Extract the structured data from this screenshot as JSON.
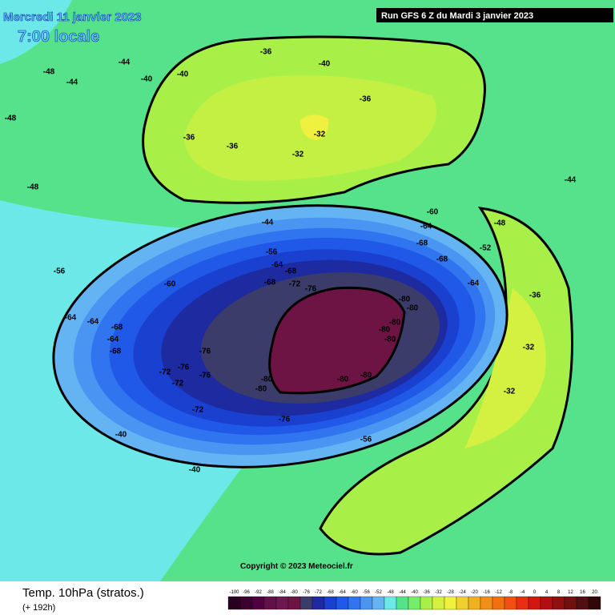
{
  "header": {
    "title": "Mercredi 11 janvier 2023",
    "subtitle": "7:00 locale",
    "run": "Run GFS 6 Z du Mardi 3 janvier 2023"
  },
  "footer": {
    "parameter": "Temp. 10hPa (stratos.)",
    "lead_time": "(+ 192h)",
    "copyright": "Copyright © 2023 Meteociel.fr"
  },
  "colorbar": {
    "labels": [
      -100,
      -96,
      -92,
      -88,
      -84,
      -80,
      -76,
      -72,
      -68,
      -64,
      -60,
      -56,
      -52,
      -48,
      -44,
      -40,
      -36,
      -32,
      -28,
      -24,
      -20,
      -16,
      -12,
      -8,
      -4,
      0,
      4,
      8,
      12,
      16,
      20
    ],
    "colors": [
      "#2a0020",
      "#3c0030",
      "#500040",
      "#621048",
      "#6c1850",
      "#6e1444",
      "#3c3c6a",
      "#1e2aa0",
      "#1a40d0",
      "#2058e8",
      "#3074f0",
      "#4a94f2",
      "#64b4f4",
      "#6ce8e8",
      "#56e28a",
      "#74ee66",
      "#a8f048",
      "#d4f040",
      "#f0f040",
      "#f0d030",
      "#f0b020",
      "#f09018",
      "#f07010",
      "#f05010",
      "#e83010",
      "#d01810",
      "#b01010",
      "#901010",
      "#701010",
      "#501010",
      "#300808"
    ]
  },
  "map": {
    "contour_labels": [
      "-80",
      "-80",
      "-80",
      "-80",
      "-80",
      "-80",
      "-80",
      "-80",
      "-80",
      "-76",
      "-76",
      "-76",
      "-76",
      "-76",
      "-72",
      "-72",
      "-72",
      "-72",
      "-68",
      "-68",
      "-68",
      "-68",
      "-68",
      "-68",
      "-64",
      "-64",
      "-64",
      "-64",
      "-64",
      "-64",
      "-60",
      "-60",
      "-56",
      "-56",
      "-56",
      "-52",
      "-48",
      "-48",
      "-48",
      "-48",
      "-44",
      "-44",
      "-44",
      "-44",
      "-40",
      "-40",
      "-40",
      "-40",
      "-40",
      "-36",
      "-36",
      "-36",
      "-36",
      "-36",
      "-32",
      "-32",
      "-32",
      "-32"
    ]
  }
}
